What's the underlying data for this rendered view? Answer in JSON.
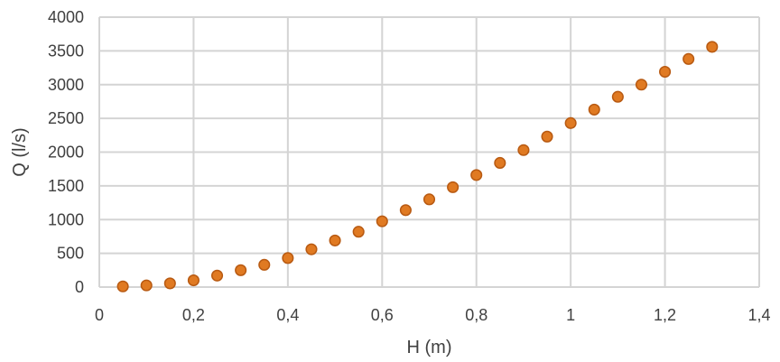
{
  "chart_data": {
    "type": "scatter",
    "title": "",
    "xlabel": "H (m)",
    "ylabel": "Q (l/s)",
    "xlim": [
      0,
      1.4
    ],
    "ylim": [
      0,
      4000
    ],
    "x_ticks": [
      "0",
      "0,2",
      "0,4",
      "0,6",
      "0,8",
      "1",
      "1,2",
      "1,4"
    ],
    "y_ticks": [
      "0",
      "500",
      "1000",
      "1500",
      "2000",
      "2500",
      "3000",
      "3500",
      "4000"
    ],
    "grid": true,
    "legend": "none",
    "series": [
      {
        "color": "#E07A22",
        "points": [
          {
            "x": 0.05,
            "y": 10
          },
          {
            "x": 0.1,
            "y": 25
          },
          {
            "x": 0.15,
            "y": 55
          },
          {
            "x": 0.2,
            "y": 100
          },
          {
            "x": 0.25,
            "y": 170
          },
          {
            "x": 0.3,
            "y": 250
          },
          {
            "x": 0.35,
            "y": 330
          },
          {
            "x": 0.4,
            "y": 430
          },
          {
            "x": 0.45,
            "y": 560
          },
          {
            "x": 0.5,
            "y": 690
          },
          {
            "x": 0.55,
            "y": 820
          },
          {
            "x": 0.6,
            "y": 975
          },
          {
            "x": 0.65,
            "y": 1140
          },
          {
            "x": 0.7,
            "y": 1300
          },
          {
            "x": 0.75,
            "y": 1480
          },
          {
            "x": 0.8,
            "y": 1660
          },
          {
            "x": 0.85,
            "y": 1840
          },
          {
            "x": 0.9,
            "y": 2030
          },
          {
            "x": 0.95,
            "y": 2230
          },
          {
            "x": 1.0,
            "y": 2430
          },
          {
            "x": 1.05,
            "y": 2630
          },
          {
            "x": 1.1,
            "y": 2820
          },
          {
            "x": 1.15,
            "y": 3000
          },
          {
            "x": 1.2,
            "y": 3190
          },
          {
            "x": 1.25,
            "y": 3380
          },
          {
            "x": 1.3,
            "y": 3560
          }
        ]
      }
    ]
  }
}
